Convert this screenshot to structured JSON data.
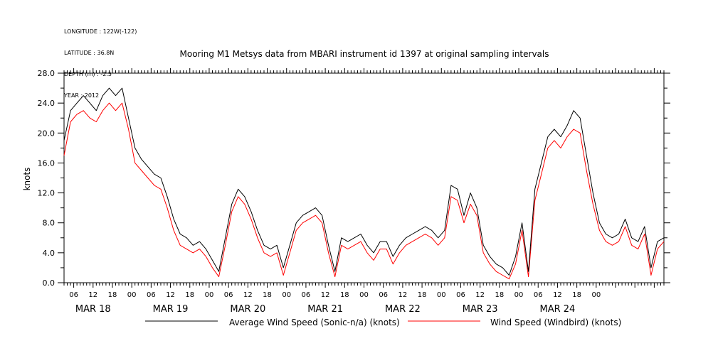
{
  "metadata": {
    "longitude": "LONGITUDE : 122W(-122)",
    "latitude": "LATITUDE : 36.8N",
    "depth": "DEPTH (m) : -2.5",
    "year": "YEAR : 2012"
  },
  "chart_data": {
    "type": "line",
    "title": "Mooring M1 Metsys data from MBARI instrument id 1397 at original sampling intervals",
    "xlabel": "",
    "ylabel": "knots",
    "ylim": [
      0,
      28.0
    ],
    "yticks": [
      "0.0",
      "4.0",
      "8.0",
      "12.0",
      "16.0",
      "20.0",
      "24.0",
      "28.0"
    ],
    "xrange_hours_since_mar18_00": [
      -21,
      165
    ],
    "hour_ticks": [
      "06",
      "12",
      "18",
      "00",
      "06",
      "12",
      "18",
      "00",
      "06",
      "12",
      "18",
      "00",
      "06",
      "12",
      "18",
      "00",
      "06",
      "12",
      "18",
      "00",
      "06",
      "12",
      "18",
      "00",
      "06",
      "12",
      "18",
      "00"
    ],
    "day_labels": [
      "MAR 18",
      "MAR 19",
      "MAR 20",
      "MAR 21",
      "MAR 22",
      "MAR 23",
      "MAR 24"
    ],
    "grid": false,
    "legend_position": "bottom",
    "series": [
      {
        "name": "Average Wind Speed (Sonic-n/a) (knots)",
        "color": "#000000",
        "points": [
          [
            -21,
            19
          ],
          [
            -19,
            23
          ],
          [
            -17,
            24
          ],
          [
            -15,
            25
          ],
          [
            -13,
            24
          ],
          [
            -11,
            23
          ],
          [
            -9,
            25
          ],
          [
            -7,
            26
          ],
          [
            -5,
            25
          ],
          [
            -3,
            26
          ],
          [
            -1,
            22
          ],
          [
            1,
            18
          ],
          [
            3,
            16.5
          ],
          [
            5,
            15.5
          ],
          [
            7,
            14.5
          ],
          [
            9,
            14
          ],
          [
            11,
            11.5
          ],
          [
            13,
            8.5
          ],
          [
            15,
            6.5
          ],
          [
            17,
            6
          ],
          [
            19,
            5
          ],
          [
            21,
            5.5
          ],
          [
            23,
            4.5
          ],
          [
            25,
            3
          ],
          [
            27,
            1.5
          ],
          [
            29,
            6
          ],
          [
            31,
            10.5
          ],
          [
            33,
            12.5
          ],
          [
            35,
            11.5
          ],
          [
            37,
            9.5
          ],
          [
            39,
            7
          ],
          [
            41,
            5
          ],
          [
            43,
            4.5
          ],
          [
            45,
            5
          ],
          [
            47,
            2
          ],
          [
            49,
            5
          ],
          [
            51,
            8
          ],
          [
            53,
            9
          ],
          [
            55,
            9.5
          ],
          [
            57,
            10
          ],
          [
            59,
            9
          ],
          [
            61,
            5
          ],
          [
            63,
            1.5
          ],
          [
            65,
            6
          ],
          [
            67,
            5.5
          ],
          [
            69,
            6
          ],
          [
            71,
            6.5
          ],
          [
            73,
            5
          ],
          [
            75,
            4
          ],
          [
            77,
            5.5
          ],
          [
            79,
            5.5
          ],
          [
            81,
            3.5
          ],
          [
            83,
            5
          ],
          [
            85,
            6
          ],
          [
            87,
            6.5
          ],
          [
            89,
            7
          ],
          [
            91,
            7.5
          ],
          [
            93,
            7
          ],
          [
            95,
            6
          ],
          [
            97,
            7
          ],
          [
            99,
            13
          ],
          [
            101,
            12.5
          ],
          [
            103,
            9
          ],
          [
            105,
            12
          ],
          [
            107,
            10
          ],
          [
            109,
            5
          ],
          [
            111,
            3.5
          ],
          [
            113,
            2.5
          ],
          [
            115,
            2
          ],
          [
            117,
            1
          ],
          [
            119,
            3.5
          ],
          [
            121,
            8
          ],
          [
            123,
            1.5
          ],
          [
            125,
            12.5
          ],
          [
            127,
            16
          ],
          [
            129,
            19.5
          ],
          [
            131,
            20.5
          ],
          [
            133,
            19.5
          ],
          [
            135,
            21
          ],
          [
            137,
            23
          ],
          [
            139,
            22
          ],
          [
            141,
            17
          ],
          [
            143,
            12
          ],
          [
            145,
            8
          ],
          [
            147,
            6.5
          ],
          [
            149,
            6
          ],
          [
            151,
            6.5
          ],
          [
            153,
            8.5
          ],
          [
            155,
            6
          ],
          [
            157,
            5.5
          ],
          [
            159,
            7.5
          ],
          [
            161,
            2
          ],
          [
            163,
            5.5
          ],
          [
            165,
            6
          ]
        ]
      },
      {
        "name": "Wind Speed (Windbird) (knots)",
        "color": "#ff0000",
        "points": [
          [
            -21,
            17
          ],
          [
            -19,
            21.5
          ],
          [
            -17,
            22.5
          ],
          [
            -15,
            23
          ],
          [
            -13,
            22
          ],
          [
            -11,
            21.5
          ],
          [
            -9,
            23
          ],
          [
            -7,
            24
          ],
          [
            -5,
            23
          ],
          [
            -3,
            24
          ],
          [
            -1,
            20.5
          ],
          [
            1,
            16
          ],
          [
            3,
            15
          ],
          [
            5,
            14
          ],
          [
            7,
            13
          ],
          [
            9,
            12.5
          ],
          [
            11,
            10
          ],
          [
            13,
            7
          ],
          [
            15,
            5
          ],
          [
            17,
            4.5
          ],
          [
            19,
            4
          ],
          [
            21,
            4.5
          ],
          [
            23,
            3.5
          ],
          [
            25,
            2
          ],
          [
            27,
            0.8
          ],
          [
            29,
            5
          ],
          [
            31,
            9.5
          ],
          [
            33,
            11.5
          ],
          [
            35,
            10.5
          ],
          [
            37,
            8.5
          ],
          [
            39,
            6
          ],
          [
            41,
            4
          ],
          [
            43,
            3.5
          ],
          [
            45,
            4
          ],
          [
            47,
            1
          ],
          [
            49,
            4
          ],
          [
            51,
            7
          ],
          [
            53,
            8
          ],
          [
            55,
            8.5
          ],
          [
            57,
            9
          ],
          [
            59,
            8
          ],
          [
            61,
            4
          ],
          [
            63,
            0.8
          ],
          [
            65,
            5
          ],
          [
            67,
            4.5
          ],
          [
            69,
            5
          ],
          [
            71,
            5.5
          ],
          [
            73,
            4
          ],
          [
            75,
            3
          ],
          [
            77,
            4.5
          ],
          [
            79,
            4.5
          ],
          [
            81,
            2.5
          ],
          [
            83,
            4
          ],
          [
            85,
            5
          ],
          [
            87,
            5.5
          ],
          [
            89,
            6
          ],
          [
            91,
            6.5
          ],
          [
            93,
            6
          ],
          [
            95,
            5
          ],
          [
            97,
            6
          ],
          [
            99,
            11.5
          ],
          [
            101,
            11
          ],
          [
            103,
            8
          ],
          [
            105,
            10.5
          ],
          [
            107,
            9
          ],
          [
            109,
            4
          ],
          [
            111,
            2.5
          ],
          [
            113,
            1.5
          ],
          [
            115,
            1
          ],
          [
            117,
            0.5
          ],
          [
            119,
            2.5
          ],
          [
            121,
            7
          ],
          [
            123,
            0.8
          ],
          [
            125,
            11
          ],
          [
            127,
            14.5
          ],
          [
            129,
            18
          ],
          [
            131,
            19
          ],
          [
            133,
            18
          ],
          [
            135,
            19.5
          ],
          [
            137,
            20.5
          ],
          [
            139,
            20
          ],
          [
            141,
            15
          ],
          [
            143,
            10.5
          ],
          [
            145,
            7
          ],
          [
            147,
            5.5
          ],
          [
            149,
            5
          ],
          [
            151,
            5.5
          ],
          [
            153,
            7.5
          ],
          [
            155,
            5
          ],
          [
            157,
            4.5
          ],
          [
            159,
            6.5
          ],
          [
            161,
            1
          ],
          [
            163,
            4.5
          ],
          [
            165,
            5.5
          ]
        ]
      }
    ]
  }
}
